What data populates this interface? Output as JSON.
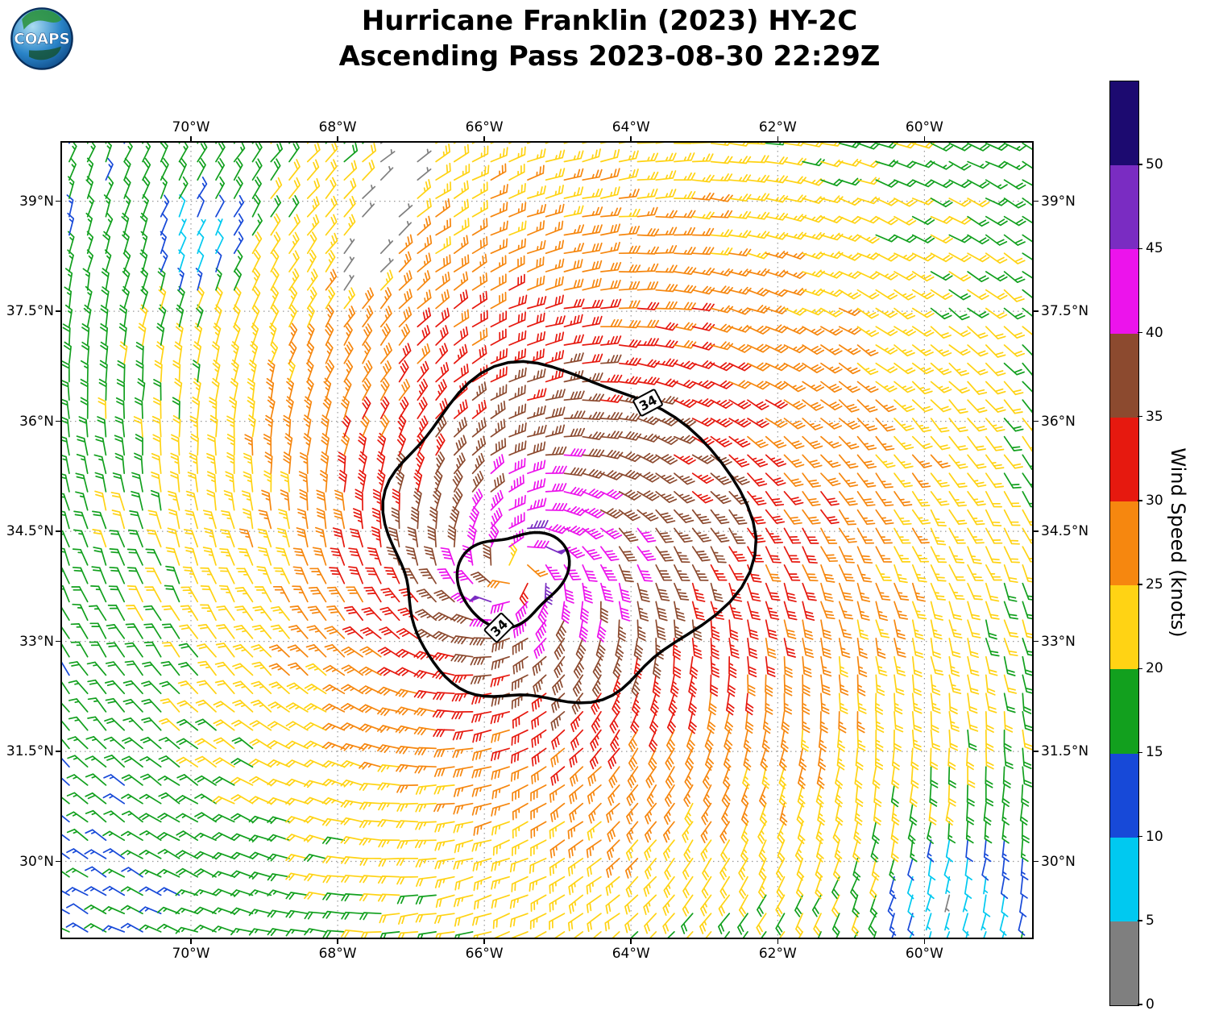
{
  "header": {
    "title": "Hurricane Franklin (2023) HY-2C",
    "subtitle": "Ascending Pass 2023-08-30 22:29Z"
  },
  "logo": {
    "text": "COAPS"
  },
  "chart_data": {
    "type": "wind-barb-map",
    "title": "Hurricane Franklin (2023) HY-2C",
    "subtitle": "Ascending Pass 2023-08-30 22:29Z",
    "projection": {
      "lon_range": [
        -71.78,
        -58.51
      ],
      "lat_range": [
        28.94,
        39.82
      ]
    },
    "x_ticks": [
      {
        "label": "70°W",
        "lon": -70
      },
      {
        "label": "68°W",
        "lon": -68
      },
      {
        "label": "66°W",
        "lon": -66
      },
      {
        "label": "64°W",
        "lon": -64
      },
      {
        "label": "62°W",
        "lon": -62
      },
      {
        "label": "60°W",
        "lon": -60
      }
    ],
    "y_ticks": [
      {
        "label": "39°N",
        "lat": 39
      },
      {
        "label": "37.5°N",
        "lat": 37.5
      },
      {
        "label": "36°N",
        "lat": 36
      },
      {
        "label": "34.5°N",
        "lat": 34.5
      },
      {
        "label": "33°N",
        "lat": 33
      },
      {
        "label": "31.5°N",
        "lat": 31.5
      },
      {
        "label": "30°N",
        "lat": 30
      }
    ],
    "grid": {
      "show": true,
      "style": "dotted",
      "color": "#999999"
    },
    "colorbar": {
      "label": "Wind Speed (knots)",
      "tick_values": [
        0,
        5,
        10,
        15,
        20,
        25,
        30,
        35,
        40,
        45,
        50
      ],
      "bins": [
        {
          "min": 0,
          "max": 5,
          "color": "#7f7f7f"
        },
        {
          "min": 5,
          "max": 10,
          "color": "#00c9f0"
        },
        {
          "min": 10,
          "max": 15,
          "color": "#1749d8"
        },
        {
          "min": 15,
          "max": 20,
          "color": "#12a01e"
        },
        {
          "min": 20,
          "max": 25,
          "color": "#ffd314"
        },
        {
          "min": 25,
          "max": 30,
          "color": "#f6870f"
        },
        {
          "min": 30,
          "max": 35,
          "color": "#e6190f"
        },
        {
          "min": 35,
          "max": 40,
          "color": "#8c4a2f"
        },
        {
          "min": 40,
          "max": 45,
          "color": "#ec13ec"
        },
        {
          "min": 45,
          "max": 50,
          "color": "#7a2cc2"
        },
        {
          "min": 50,
          "max": 60,
          "color": "#1c0a70"
        }
      ]
    },
    "contour": {
      "value": 34,
      "label": "34",
      "color": "#000000",
      "width": 3.5
    },
    "wind_field": {
      "center_lon": -65.57,
      "center_lat": 33.95,
      "max_wind_kt": 50,
      "radius_max_wind_deg": 0.55,
      "grid_spacing_deg": 0.25,
      "rotation": "cyclonic_ccw",
      "inflow_angle_deg": 22,
      "asymmetry": {
        "amplitude": 0.16,
        "toward_deg": 40
      },
      "radial_profile": {
        "outer_a": 40,
        "outer_efold_deg": 5,
        "outer_c": 8,
        "inner_exponent": 0.55
      },
      "barb_convention": {
        "pennant_kt": 50,
        "full_barb_kt": 10,
        "half_barb_kt": 5
      }
    },
    "data_voids": [
      {
        "type": "data_gap_band",
        "from": [
          -67.05,
          39.8
        ],
        "to": [
          -67.75,
          37.9
        ],
        "half_width_skip_deg": 0.16,
        "half_width_flag_deg": 0.34
      },
      {
        "type": "low_wind_patch",
        "center": [
          -69.9,
          38.4
        ],
        "radius_deg": 0.8,
        "factor": 0.35
      },
      {
        "type": "low_wind_patch",
        "center": [
          -59.55,
          29.55
        ],
        "radius_deg": 1.15,
        "factor": 0.3
      }
    ]
  }
}
